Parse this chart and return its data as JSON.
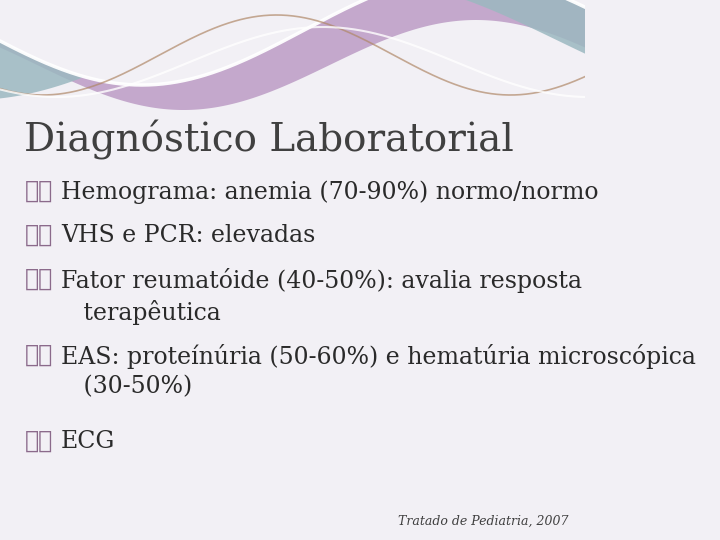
{
  "title": "Diagnóstico Laboratorial",
  "title_color": "#404040",
  "title_fontsize": 28,
  "background_color": "#f2f0f5",
  "bullet_color": "#8b6a8b",
  "bullet_fontsize": 17,
  "text_color": "#2a2a2a",
  "text_fontsize": 17,
  "footer": "Tratado de Pediatria, 2007",
  "footer_fontsize": 9,
  "footer_color": "#404040",
  "bullets": [
    "Hemograma: anemia (70-90%) normo/normo",
    "VHS e PCR: elevadas",
    "Fator reumatóide (40-50%): avalia resposta\n   terapêutica",
    "EAS: proteínúria (50-60%) e hematúria microscópica\n   (30-50%)",
    "ECG"
  ],
  "fig_width": 7.2,
  "fig_height": 5.4,
  "dpi": 100
}
